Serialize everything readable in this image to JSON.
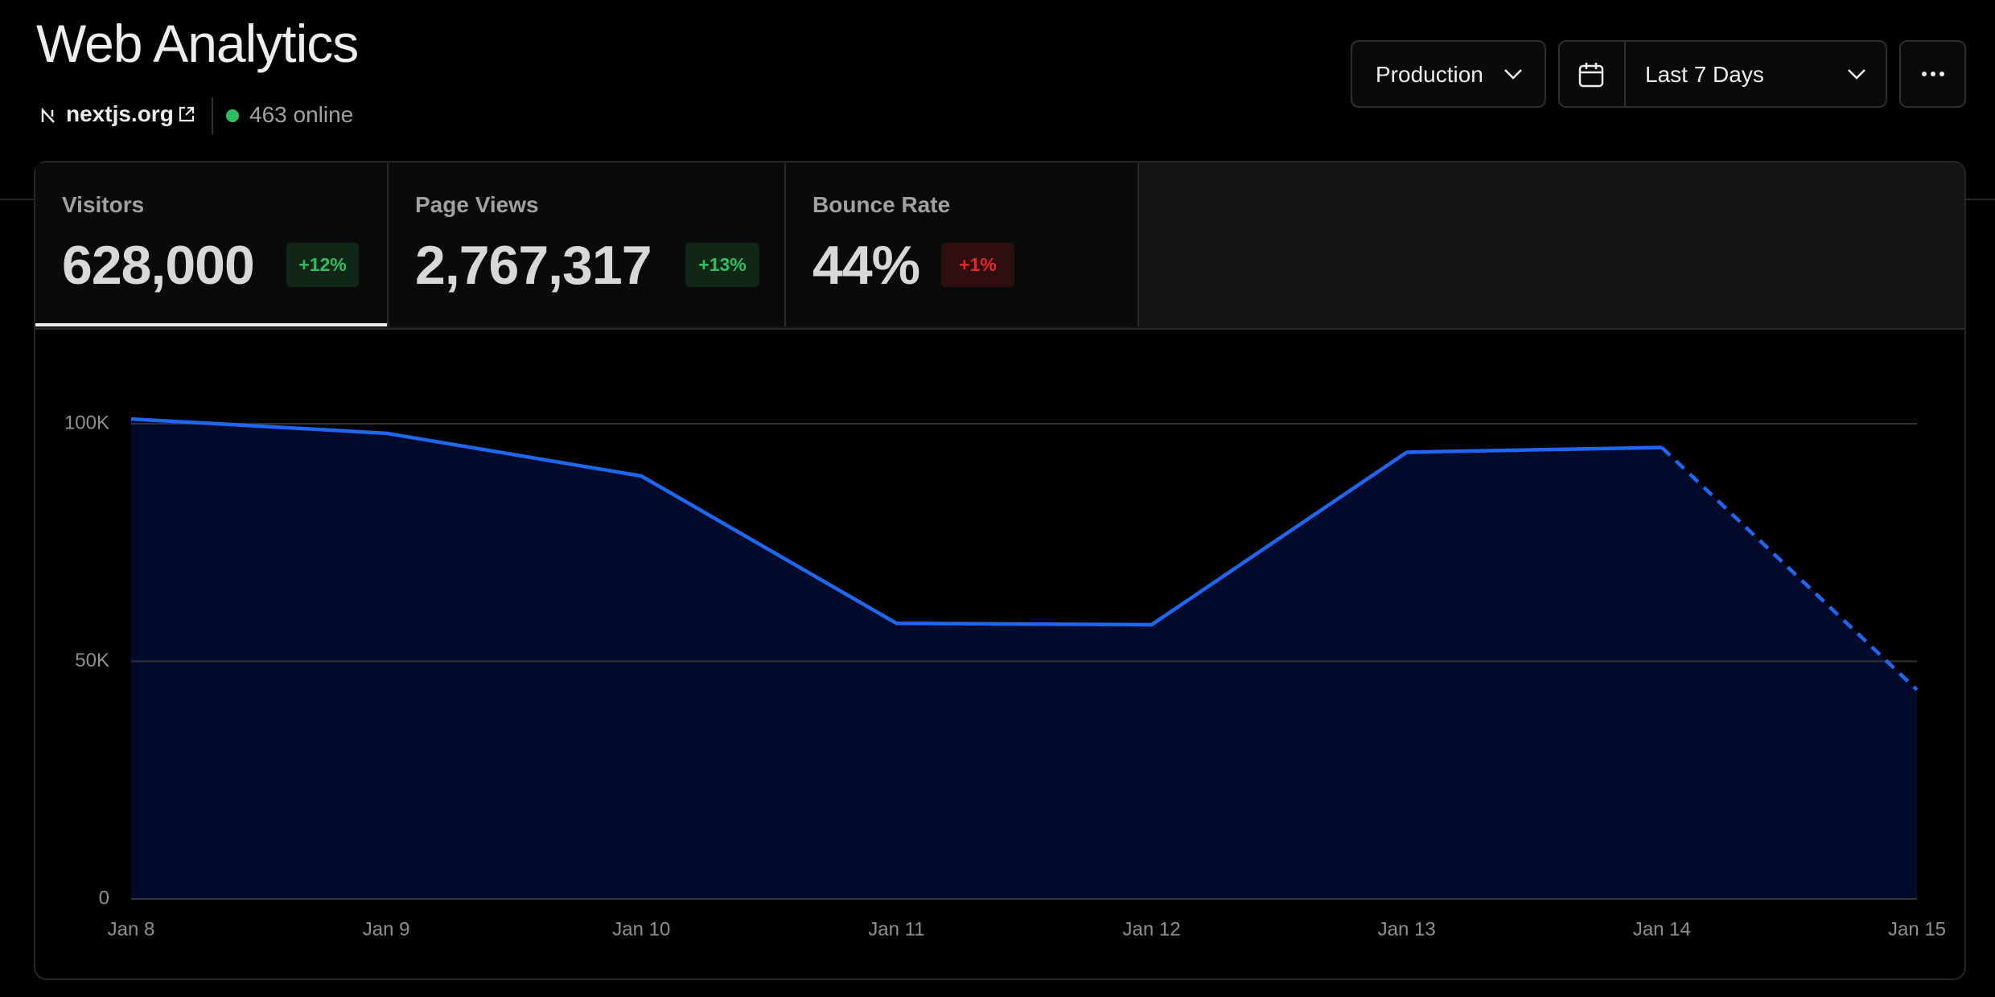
{
  "header": {
    "title": "Web Analytics",
    "site": "nextjs.org",
    "online": "463 online"
  },
  "controls": {
    "environment": "Production",
    "range": "Last 7 Days"
  },
  "metrics": [
    {
      "label": "Visitors",
      "value": "628,000",
      "change": "+12%",
      "color": "#2fbf62"
    },
    {
      "label": "Page Views",
      "value": "2,767,317",
      "change": "+13%",
      "color": "#2fbf62"
    },
    {
      "label": "Bounce Rate",
      "value": "44%",
      "change": "+1%",
      "color": "#e5242b"
    }
  ],
  "chart_data": {
    "type": "area",
    "categories": [
      "Jan 8",
      "Jan 9",
      "Jan 10",
      "Jan 11",
      "Jan 12",
      "Jan 13",
      "Jan 14",
      "Jan 15"
    ],
    "values": [
      101000,
      98000,
      89000,
      58000,
      57700,
      94000,
      95000,
      44000
    ],
    "color": "#1f66f0",
    "fill": "#020b2b",
    "dashed_segments": [
      6
    ],
    "ylim": [
      0,
      100000
    ],
    "yticks": [
      0,
      {
        "value": 50000,
        "label": "50K"
      },
      {
        "value": 100000,
        "label": "100K"
      }
    ],
    "grid": true
  }
}
